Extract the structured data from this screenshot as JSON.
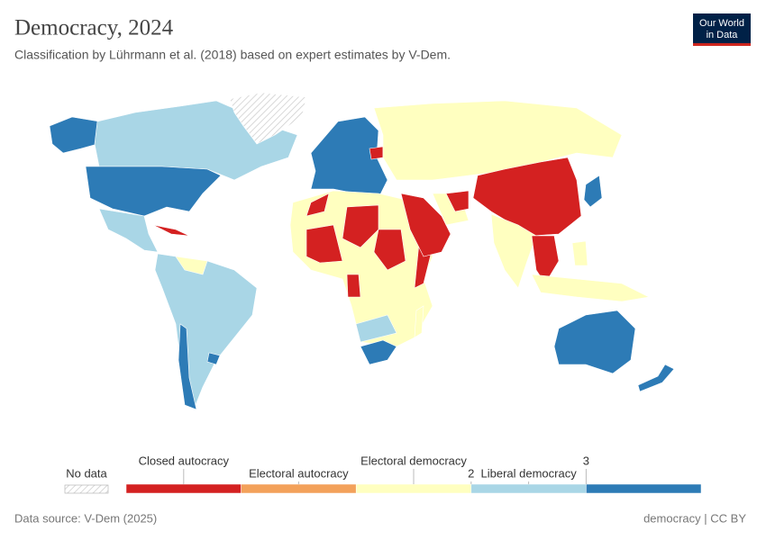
{
  "header": {
    "title": "Democracy, 2024",
    "subtitle": "Classification by Lührmann et al. (2018) based on expert estimates by V-Dem.",
    "logo": [
      "Our World",
      "in Data"
    ]
  },
  "legend": {
    "no_data": "No data",
    "bins": [
      {
        "label": "Closed autocracy",
        "color": "#d42121"
      },
      {
        "label": "Electoral autocracy",
        "color": "#f3a15a"
      },
      {
        "label": "Electoral democracy",
        "color": "#ffffc0"
      },
      {
        "label": "Liberal democracy",
        "color": "#a9d6e6"
      },
      {
        "color": "#2d7bb6"
      }
    ],
    "ticks": [
      2,
      3
    ]
  },
  "footer": {
    "source": "Data source: V-Dem (2025)",
    "license": "democracy | CC BY"
  }
}
